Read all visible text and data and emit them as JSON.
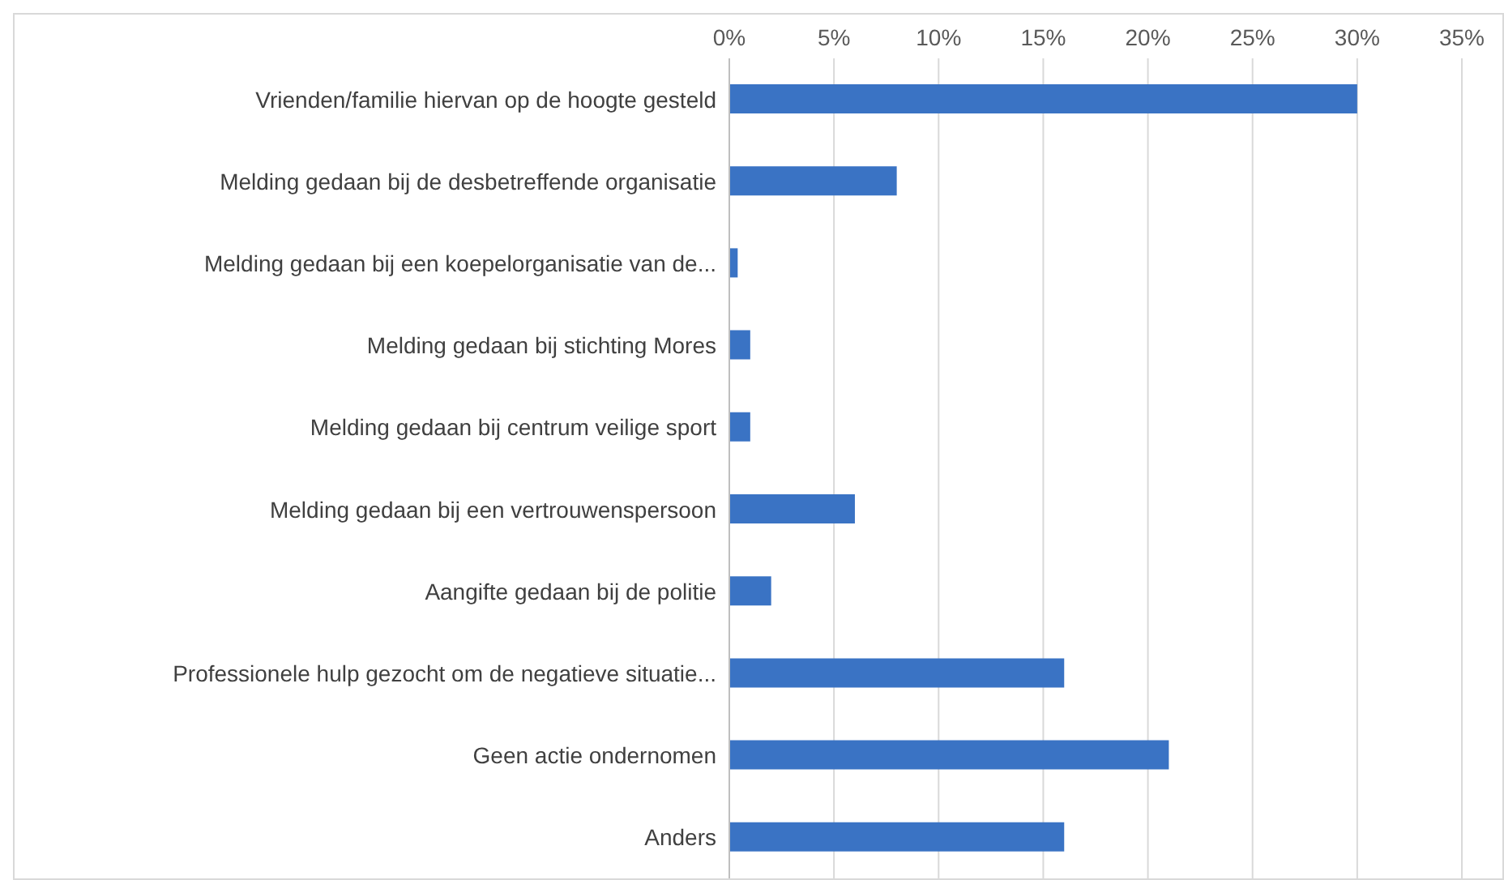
{
  "chart_data": {
    "type": "bar",
    "orientation": "horizontal",
    "categories": [
      "Vrienden/familie hiervan op de hoogte gesteld",
      "Melding gedaan bij de desbetreffende organisatie",
      "Melding gedaan bij een koepelorganisatie van de...",
      "Melding gedaan bij stichting Mores",
      "Melding gedaan bij centrum veilige sport",
      "Melding gedaan bij een vertrouwenspersoon",
      "Aangifte gedaan bij de politie",
      "Professionele hulp gezocht om de negatieve situatie...",
      "Geen actie ondernomen",
      "Anders"
    ],
    "values": [
      30,
      8,
      0.4,
      1,
      1,
      6,
      2,
      16,
      21,
      16
    ],
    "color": "#3a73c4",
    "xlim": [
      0,
      35
    ],
    "xticks": [
      {
        "value": 0,
        "label": "0%"
      },
      {
        "value": 5,
        "label": "5%"
      },
      {
        "value": 10,
        "label": "10%"
      },
      {
        "value": 15,
        "label": "15%"
      },
      {
        "value": 20,
        "label": "20%"
      },
      {
        "value": 25,
        "label": "25%"
      },
      {
        "value": 30,
        "label": "30%"
      },
      {
        "value": 35,
        "label": "35%"
      }
    ],
    "grid": "x"
  }
}
